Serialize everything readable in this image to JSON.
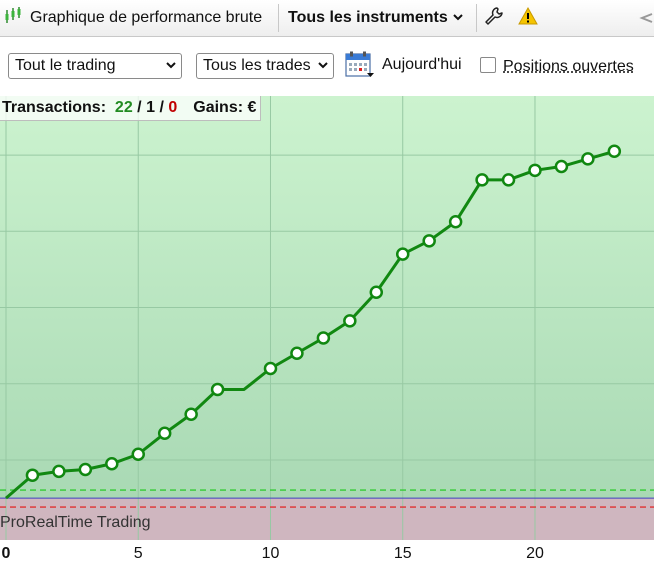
{
  "toolbar": {
    "title": "Graphique de performance brute",
    "instruments": "Tous les instruments",
    "icons": [
      "candlestick-icon",
      "chevron-down-icon",
      "wrench-icon",
      "warning-icon"
    ]
  },
  "filters": {
    "trading_scope": "Tout le trading",
    "trade_type": "Tous les trades",
    "date_label": "Aujourd'hui",
    "open_positions_label": "Positions ouvertes",
    "open_positions_checked": false
  },
  "stats": {
    "transactions_label": "Transactions:",
    "winning": "22",
    "neutral": "1",
    "losing": "0",
    "sep": "/",
    "gains_label": "Gains: €"
  },
  "watermark": "ProRealTime Trading",
  "colors": {
    "line": "#118811",
    "positive_zone_top": "#ccf3cf",
    "positive_zone_bottom": "#a9d9b4",
    "negative_zone": "#cfb6bf",
    "zero_line": "#4040c0",
    "upper_dash": "#33cc33",
    "lower_dash": "#e03030"
  },
  "chart_data": {
    "type": "line",
    "x": [
      0,
      1,
      2,
      3,
      4,
      5,
      6,
      7,
      8,
      9,
      10,
      11,
      12,
      13,
      14,
      15,
      16,
      17,
      18,
      19,
      20,
      21,
      22,
      23
    ],
    "y": [
      0,
      1.2,
      1.4,
      1.5,
      1.8,
      2.3,
      3.4,
      4.4,
      5.7,
      5.7,
      6.8,
      7.6,
      8.4,
      9.3,
      10.8,
      12.8,
      13.5,
      14.5,
      16.7,
      16.7,
      17.2,
      17.4,
      17.8,
      18.2
    ],
    "markers": [
      false,
      true,
      true,
      true,
      true,
      true,
      true,
      true,
      true,
      false,
      true,
      true,
      true,
      true,
      true,
      true,
      true,
      true,
      true,
      true,
      true,
      true,
      true,
      true
    ],
    "xticks": [
      0,
      5,
      10,
      15,
      20
    ],
    "xlim": [
      0,
      24.5
    ],
    "ylim": [
      -2.2,
      21.1
    ],
    "grid": true,
    "xlabel": "",
    "ylabel": ""
  }
}
